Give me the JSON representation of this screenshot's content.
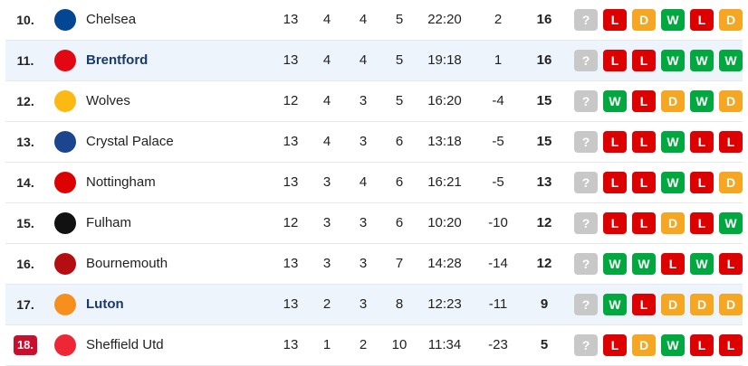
{
  "rows": [
    {
      "rank": "10.",
      "team": "Chelsea",
      "played": 13,
      "won": 4,
      "drawn": 4,
      "lost": 5,
      "goals": "22:20",
      "diff": 2,
      "points": 16,
      "form": [
        "?",
        "L",
        "D",
        "W",
        "L",
        "D"
      ]
    },
    {
      "rank": "11.",
      "team": "Brentford",
      "played": 13,
      "won": 4,
      "drawn": 4,
      "lost": 5,
      "goals": "19:18",
      "diff": 1,
      "points": 16,
      "form": [
        "?",
        "L",
        "L",
        "W",
        "W",
        "W"
      ],
      "highlight": true
    },
    {
      "rank": "12.",
      "team": "Wolves",
      "played": 12,
      "won": 4,
      "drawn": 3,
      "lost": 5,
      "goals": "16:20",
      "diff": -4,
      "points": 15,
      "form": [
        "?",
        "W",
        "L",
        "D",
        "W",
        "D"
      ]
    },
    {
      "rank": "13.",
      "team": "Crystal Palace",
      "played": 13,
      "won": 4,
      "drawn": 3,
      "lost": 6,
      "goals": "13:18",
      "diff": -5,
      "points": 15,
      "form": [
        "?",
        "L",
        "L",
        "W",
        "L",
        "L"
      ]
    },
    {
      "rank": "14.",
      "team": "Nottingham",
      "played": 13,
      "won": 3,
      "drawn": 4,
      "lost": 6,
      "goals": "16:21",
      "diff": -5,
      "points": 13,
      "form": [
        "?",
        "L",
        "L",
        "W",
        "L",
        "D"
      ]
    },
    {
      "rank": "15.",
      "team": "Fulham",
      "played": 12,
      "won": 3,
      "drawn": 3,
      "lost": 6,
      "goals": "10:20",
      "diff": -10,
      "points": 12,
      "form": [
        "?",
        "L",
        "L",
        "D",
        "L",
        "W"
      ]
    },
    {
      "rank": "16.",
      "team": "Bournemouth",
      "played": 13,
      "won": 3,
      "drawn": 3,
      "lost": 7,
      "goals": "14:28",
      "diff": -14,
      "points": 12,
      "form": [
        "?",
        "W",
        "W",
        "L",
        "W",
        "L"
      ]
    },
    {
      "rank": "17.",
      "team": "Luton",
      "played": 13,
      "won": 2,
      "drawn": 3,
      "lost": 8,
      "goals": "12:23",
      "diff": -11,
      "points": 9,
      "form": [
        "?",
        "W",
        "L",
        "D",
        "D",
        "D"
      ],
      "highlight": true
    },
    {
      "rank": "18.",
      "team": "Sheffield Utd",
      "played": 13,
      "won": 1,
      "drawn": 2,
      "lost": 10,
      "goals": "11:34",
      "diff": -23,
      "points": 5,
      "form": [
        "?",
        "L",
        "D",
        "W",
        "L",
        "L"
      ],
      "badge": true
    }
  ]
}
